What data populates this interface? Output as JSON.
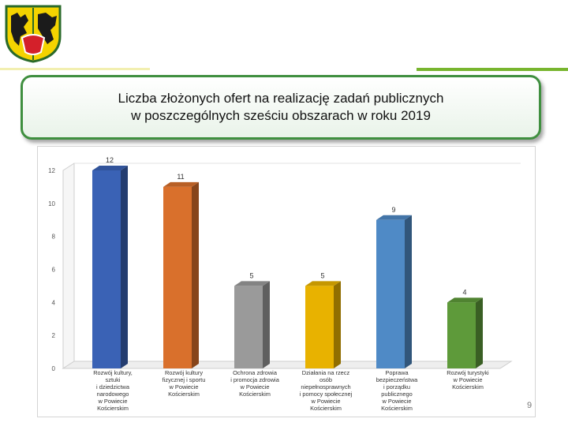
{
  "slide": {
    "title_line1": "Liczba złożonych ofert na realizację zadań publicznych",
    "title_line2": "w poszczególnych sześciu obszarach w roku 2019",
    "page_number": "9",
    "logo": "coat-of-arms-icon"
  },
  "colors": {
    "accent_green": "#78b52e",
    "title_border": "#3f8f3f"
  },
  "chart_data": {
    "type": "bar",
    "title": "",
    "xlabel": "",
    "ylabel": "",
    "ylim": [
      0,
      12
    ],
    "yticks": [
      0,
      2,
      4,
      6,
      8,
      10,
      12
    ],
    "grid": false,
    "legend": "none",
    "categories": [
      [
        "Rozwój kultury,",
        "sztuki",
        "i dziedzictwa",
        "narodowego",
        "w Powiecie",
        "Kościerskim"
      ],
      [
        "Rozwój kultury",
        "fizycznej i sportu",
        "w Powiecie",
        "Kościerskim"
      ],
      [
        "Ochrona zdrowia",
        "i promocja zdrowia",
        "w Powiecie",
        "Kościerskim"
      ],
      [
        "Działania na rzecz",
        "osób",
        "niepełnosprawnych",
        "i pomocy społecznej",
        "w Powiecie",
        "Kościerskim"
      ],
      [
        "Poprawa",
        "bezpieczeństwa",
        "i porządku",
        "publicznego",
        "w Powiecie",
        "Kościerskim"
      ],
      [
        "Rozwój turystyki",
        "w Powiecie",
        "Kościerskim"
      ]
    ],
    "values": [
      12,
      11,
      5,
      5,
      9,
      4
    ],
    "bar_colors": [
      "#3a62b5",
      "#d9702c",
      "#9a9a9a",
      "#e8b200",
      "#4f8ac6",
      "#5e9a3a"
    ]
  }
}
